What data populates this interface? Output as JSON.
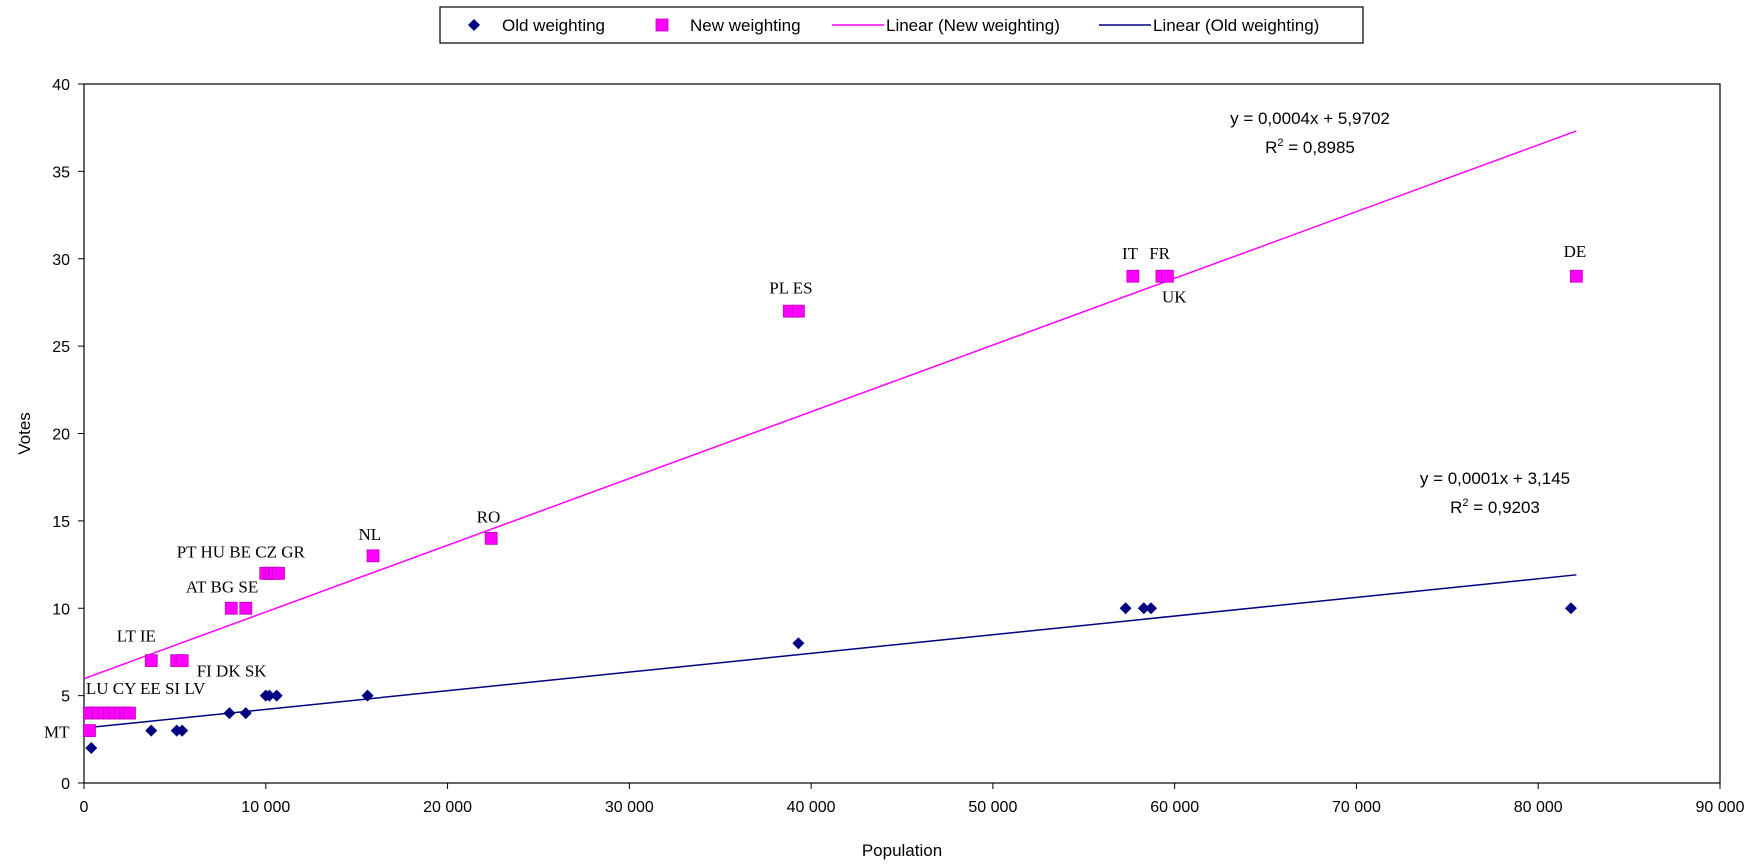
{
  "chart_data": {
    "type": "scatter",
    "xlabel": "Population",
    "ylabel": "Votes",
    "xlim": [
      0,
      90000
    ],
    "ylim": [
      0,
      40
    ],
    "x_ticks": [
      0,
      10000,
      20000,
      30000,
      40000,
      50000,
      60000,
      70000,
      80000,
      90000
    ],
    "x_tick_labels": [
      "0",
      "10 000",
      "20 000",
      "30 000",
      "40 000",
      "50 000",
      "60 000",
      "70 000",
      "80 000",
      "90 000"
    ],
    "y_ticks": [
      0,
      5,
      10,
      15,
      20,
      25,
      30,
      35,
      40
    ],
    "y_tick_labels": [
      "0",
      "5",
      "10",
      "15",
      "20",
      "25",
      "30",
      "35",
      "40"
    ],
    "grid": false,
    "legend_position": "top-center",
    "colors": {
      "old": "#000080",
      "new": "#ff00ff"
    },
    "legend": [
      {
        "label": "Old weighting",
        "kind": "marker",
        "series": "old"
      },
      {
        "label": "New weighting",
        "kind": "marker",
        "series": "new"
      },
      {
        "label": "Linear (New weighting)",
        "kind": "line",
        "series": "new"
      },
      {
        "label": "Linear (Old weighting)",
        "kind": "line",
        "series": "old"
      }
    ],
    "series": [
      {
        "name": "Old weighting",
        "marker": "diamond",
        "points": [
          {
            "x": 400,
            "y": 2
          },
          {
            "x": 3700,
            "y": 3
          },
          {
            "x": 5100,
            "y": 3
          },
          {
            "x": 5400,
            "y": 3
          },
          {
            "x": 8000,
            "y": 4
          },
          {
            "x": 8900,
            "y": 4
          },
          {
            "x": 10000,
            "y": 5
          },
          {
            "x": 10200,
            "y": 5
          },
          {
            "x": 10600,
            "y": 5
          },
          {
            "x": 15600,
            "y": 5
          },
          {
            "x": 39300,
            "y": 8
          },
          {
            "x": 57300,
            "y": 10
          },
          {
            "x": 58300,
            "y": 10
          },
          {
            "x": 58700,
            "y": 10
          },
          {
            "x": 81800,
            "y": 10
          }
        ]
      },
      {
        "name": "New weighting",
        "marker": "square",
        "points": [
          {
            "x": 300,
            "y": 3
          },
          {
            "x": 300,
            "y": 4
          },
          {
            "x": 500,
            "y": 4
          },
          {
            "x": 800,
            "y": 4
          },
          {
            "x": 1100,
            "y": 4
          },
          {
            "x": 1400,
            "y": 4
          },
          {
            "x": 1700,
            "y": 4
          },
          {
            "x": 2000,
            "y": 4
          },
          {
            "x": 2300,
            "y": 4
          },
          {
            "x": 2500,
            "y": 4
          },
          {
            "x": 3700,
            "y": 7
          },
          {
            "x": 5100,
            "y": 7
          },
          {
            "x": 5400,
            "y": 7
          },
          {
            "x": 8100,
            "y": 10
          },
          {
            "x": 8900,
            "y": 10
          },
          {
            "x": 10000,
            "y": 12
          },
          {
            "x": 10200,
            "y": 12
          },
          {
            "x": 10300,
            "y": 12
          },
          {
            "x": 10500,
            "y": 12
          },
          {
            "x": 10700,
            "y": 12
          },
          {
            "x": 15900,
            "y": 13
          },
          {
            "x": 22400,
            "y": 14
          },
          {
            "x": 38800,
            "y": 27
          },
          {
            "x": 39300,
            "y": 27
          },
          {
            "x": 57700,
            "y": 29
          },
          {
            "x": 59300,
            "y": 29
          },
          {
            "x": 59600,
            "y": 29
          },
          {
            "x": 82100,
            "y": 29
          }
        ]
      }
    ],
    "trendlines": [
      {
        "name": "Linear (New weighting)",
        "series": "new",
        "x_range": [
          0,
          82100
        ],
        "slope": 0.0003818,
        "intercept": 5.9702,
        "equation": "y = 0,0004x + 5,9702",
        "r2_label": "R",
        "r2_sup": "2",
        "r2_value": " = 0,8985"
      },
      {
        "name": "Linear (Old weighting)",
        "series": "old",
        "x_range": [
          0,
          82100
        ],
        "slope": 0.0001068,
        "intercept": 3.145,
        "equation": "y = 0,0001x + 3,145",
        "r2_label": "R",
        "r2_sup": "2",
        "r2_value": " = 0,9203"
      }
    ],
    "annotations": [
      {
        "text": "MT",
        "x": -2200,
        "y": 2.6
      },
      {
        "text": "LU CY EE SI LV",
        "x": 100,
        "y": 5.1
      },
      {
        "text": "LT IE",
        "x": 1800,
        "y": 8.1
      },
      {
        "text": "FI DK SK",
        "x": 6200,
        "y": 6.1
      },
      {
        "text": "AT BG SE",
        "x": 5600,
        "y": 10.9
      },
      {
        "text": "PT HU BE CZ GR",
        "x": 5100,
        "y": 12.9
      },
      {
        "text": "NL",
        "x": 15100,
        "y": 13.9
      },
      {
        "text": "RO",
        "x": 21600,
        "y": 14.9
      },
      {
        "text": "PL ES",
        "x": 37700,
        "y": 28.0
      },
      {
        "text": "IT",
        "x": 57100,
        "y": 30.0
      },
      {
        "text": "FR",
        "x": 58600,
        "y": 30.0
      },
      {
        "text": "UK",
        "x": 59300,
        "y": 27.5
      },
      {
        "text": "DE",
        "x": 81400,
        "y": 30.1
      }
    ]
  }
}
